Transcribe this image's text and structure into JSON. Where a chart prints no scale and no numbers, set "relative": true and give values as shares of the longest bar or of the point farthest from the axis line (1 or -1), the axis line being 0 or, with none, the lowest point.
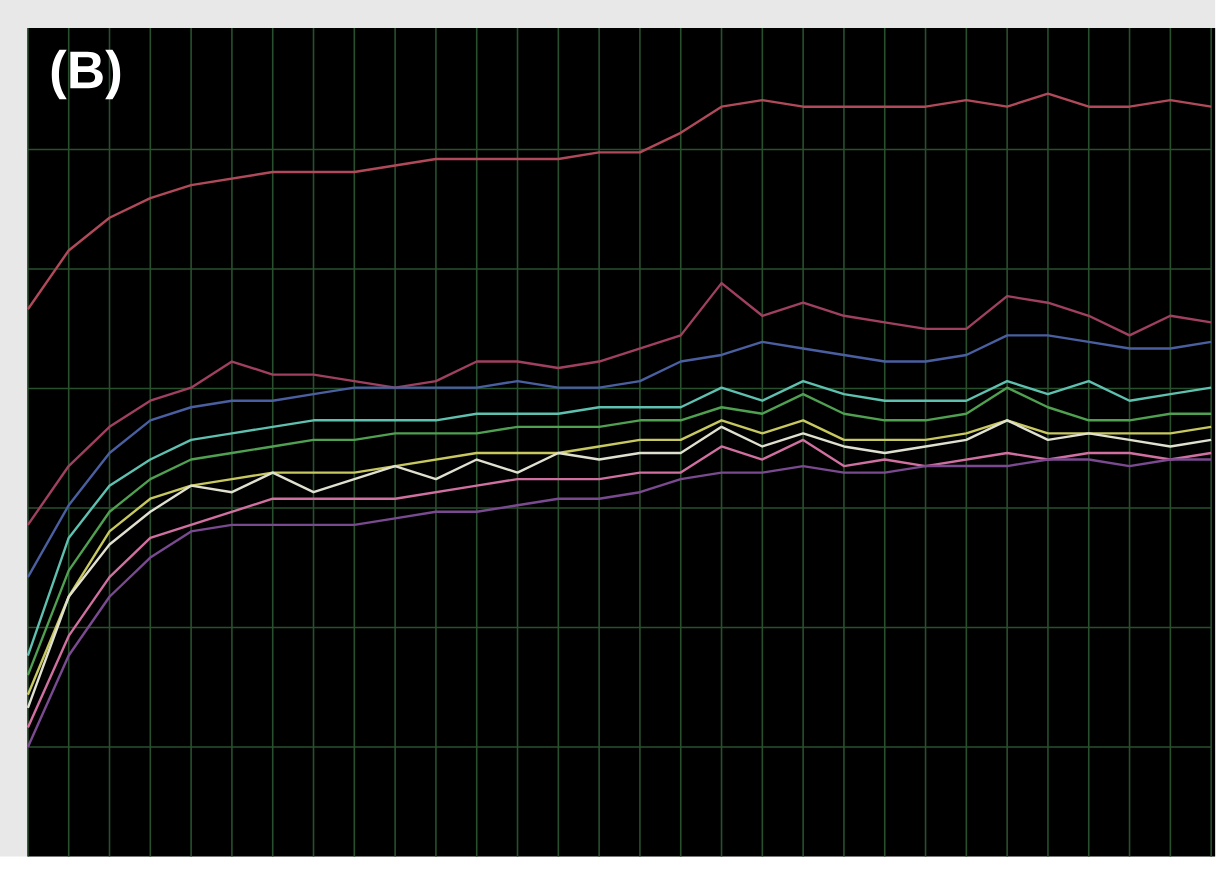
{
  "chart_data": {
    "type": "line",
    "title": "(B)",
    "relative": true,
    "grid": true,
    "tick_labels": false,
    "marker": "none",
    "line_style": "solid",
    "categories": [
      null,
      null,
      null,
      null,
      null,
      null,
      null,
      null,
      null,
      null,
      null,
      null,
      null,
      null,
      null,
      null,
      null,
      null,
      null,
      null,
      null,
      null,
      null,
      null,
      null,
      null,
      null,
      null,
      null,
      null
    ],
    "series": [
      {
        "color": "#b04a5a",
        "values": [
          0.67,
          0.76,
          0.81,
          0.84,
          0.86,
          0.87,
          0.88,
          0.88,
          0.88,
          0.89,
          0.9,
          0.9,
          0.9,
          0.9,
          0.91,
          0.91,
          0.94,
          0.98,
          0.99,
          0.98,
          0.98,
          0.98,
          0.98,
          0.99,
          0.98,
          1,
          0.98,
          0.98,
          0.99,
          0.98
        ]
      },
      {
        "color": "#a04060",
        "values": [
          0.34,
          0.43,
          0.49,
          0.53,
          0.55,
          0.59,
          0.57,
          0.57,
          0.56,
          0.55,
          0.56,
          0.59,
          0.59,
          0.58,
          0.59,
          0.61,
          0.63,
          0.71,
          0.66,
          0.68,
          0.66,
          0.65,
          0.64,
          0.64,
          0.69,
          0.68,
          0.66,
          0.63,
          0.66,
          0.65
        ]
      },
      {
        "color": "#4a5fa0",
        "values": [
          0.26,
          0.37,
          0.45,
          0.5,
          0.52,
          0.53,
          0.53,
          0.54,
          0.55,
          0.55,
          0.55,
          0.55,
          0.56,
          0.55,
          0.55,
          0.56,
          0.59,
          0.6,
          0.62,
          0.61,
          0.6,
          0.59,
          0.59,
          0.6,
          0.63,
          0.63,
          0.62,
          0.61,
          0.61,
          0.62
        ]
      },
      {
        "color": "#5fc0b0",
        "values": [
          0.14,
          0.32,
          0.4,
          0.44,
          0.47,
          0.48,
          0.49,
          0.5,
          0.5,
          0.5,
          0.5,
          0.51,
          0.51,
          0.51,
          0.52,
          0.52,
          0.52,
          0.55,
          0.53,
          0.56,
          0.54,
          0.53,
          0.53,
          0.53,
          0.56,
          0.54,
          0.56,
          0.53,
          0.54,
          0.55
        ]
      },
      {
        "color": "#4fa050",
        "values": [
          0.11,
          0.27,
          0.36,
          0.41,
          0.44,
          0.45,
          0.46,
          0.47,
          0.47,
          0.48,
          0.48,
          0.48,
          0.49,
          0.49,
          0.49,
          0.5,
          0.5,
          0.52,
          0.51,
          0.54,
          0.51,
          0.5,
          0.5,
          0.51,
          0.55,
          0.52,
          0.5,
          0.5,
          0.51,
          0.51
        ]
      },
      {
        "color": "#c8c860",
        "values": [
          0.08,
          0.23,
          0.33,
          0.38,
          0.4,
          0.41,
          0.42,
          0.42,
          0.42,
          0.43,
          0.44,
          0.45,
          0.45,
          0.45,
          0.46,
          0.47,
          0.47,
          0.5,
          0.48,
          0.5,
          0.47,
          0.47,
          0.47,
          0.48,
          0.5,
          0.48,
          0.48,
          0.48,
          0.48,
          0.49
        ]
      },
      {
        "color": "#e0e0d0",
        "values": [
          0.06,
          0.23,
          0.31,
          0.36,
          0.4,
          0.39,
          0.42,
          0.39,
          0.41,
          0.43,
          0.41,
          0.44,
          0.42,
          0.45,
          0.44,
          0.45,
          0.45,
          0.49,
          0.46,
          0.48,
          0.46,
          0.45,
          0.46,
          0.47,
          0.5,
          0.47,
          0.48,
          0.47,
          0.46,
          0.47
        ]
      },
      {
        "color": "#d070a0",
        "values": [
          0.03,
          0.17,
          0.26,
          0.32,
          0.34,
          0.36,
          0.38,
          0.38,
          0.38,
          0.38,
          0.39,
          0.4,
          0.41,
          0.41,
          0.41,
          0.42,
          0.42,
          0.46,
          0.44,
          0.47,
          0.43,
          0.44,
          0.43,
          0.44,
          0.45,
          0.44,
          0.45,
          0.45,
          0.44,
          0.45
        ]
      },
      {
        "color": "#7a4a90",
        "values": [
          0,
          0.14,
          0.23,
          0.29,
          0.33,
          0.34,
          0.34,
          0.34,
          0.34,
          0.35,
          0.36,
          0.36,
          0.37,
          0.38,
          0.38,
          0.39,
          0.41,
          0.42,
          0.42,
          0.43,
          0.42,
          0.42,
          0.43,
          0.43,
          0.43,
          0.44,
          0.44,
          0.43,
          0.44,
          0.44
        ]
      }
    ]
  }
}
